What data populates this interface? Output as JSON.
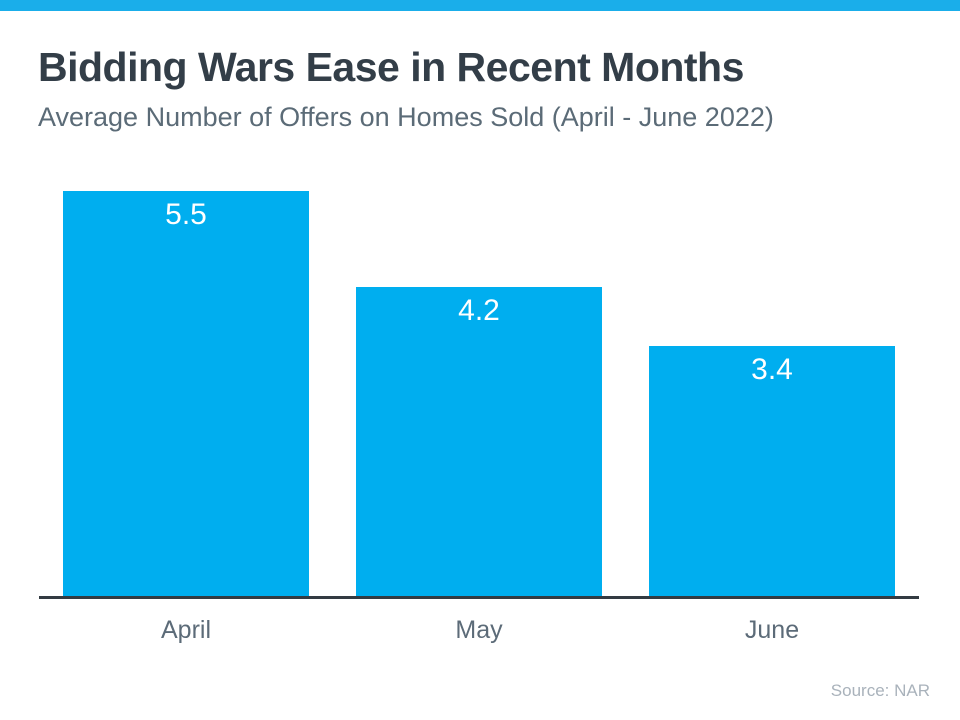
{
  "page": {
    "background_color": "#FFFFFF",
    "accent_strip_color": "#1AAEEA"
  },
  "chart_data": {
    "type": "bar",
    "title": "Bidding Wars Ease in Recent Months",
    "subtitle": "Average Number of Offers on Homes Sold (April - June 2022)",
    "categories": [
      "April",
      "May",
      "June"
    ],
    "values": [
      5.5,
      4.2,
      3.4
    ],
    "value_labels": [
      "5.5",
      "4.2",
      "3.4"
    ],
    "xlabel": "",
    "ylabel": "",
    "ylim": [
      0,
      5.5
    ],
    "grid": "off",
    "legend": "none",
    "value_labels_position": "inside-top",
    "bar_color": "#00AEEF",
    "value_label_color": "#FFFFFF",
    "axis_line_color": "#333B42",
    "category_label_color": "#5C6B78",
    "title_color": "#333E48",
    "subtitle_color": "#5B6B77"
  },
  "footer": {
    "source_label": "Source: NAR",
    "source_color": "#A9B2BB"
  }
}
